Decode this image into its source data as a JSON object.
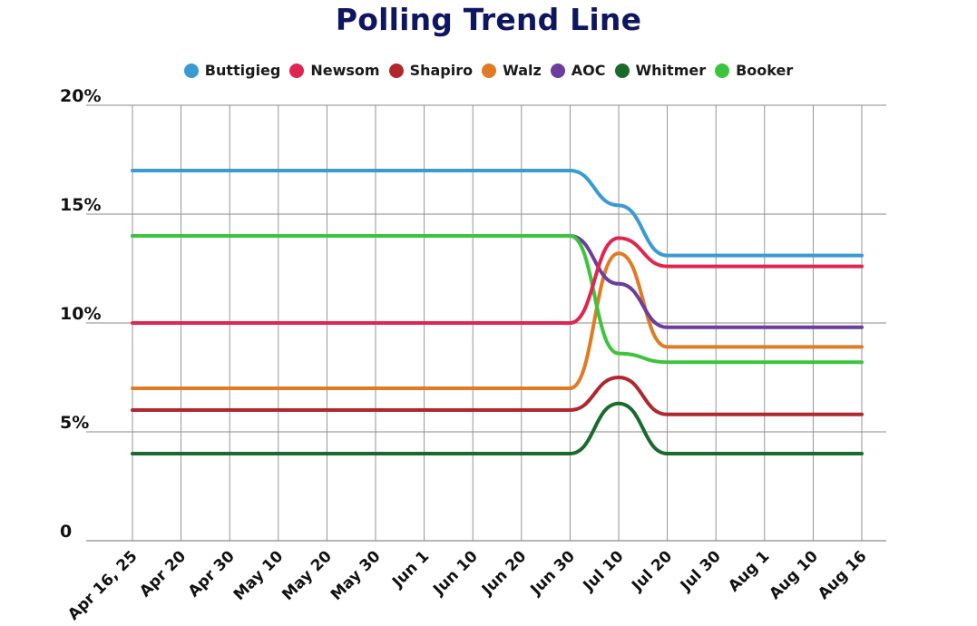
{
  "chart_data": {
    "type": "line",
    "title": "Polling Trend Line",
    "xlabel": "",
    "ylabel": "",
    "x_categories": [
      "Apr 16, 25",
      "Apr 20",
      "Apr 30",
      "May 10",
      "May 20",
      "May 30",
      "Jun 1",
      "Jun 10",
      "Jun 20",
      "Jun 30",
      "Jul 10",
      "Jul 20",
      "Jul 30",
      "Aug 1",
      "Aug 10",
      "Aug 16"
    ],
    "y_ticks": [
      "0",
      "5%",
      "10%",
      "15%",
      "20%"
    ],
    "ylim": [
      0,
      20
    ],
    "y_unit": "%",
    "grid": true,
    "legend_position": "top-center",
    "series": [
      {
        "name": "Buttigieg",
        "color": "#3a9ad2",
        "values": [
          17,
          17,
          17,
          17,
          17,
          17,
          17,
          17,
          17,
          17,
          15.4,
          13.1,
          13.1,
          13.1,
          13.1,
          13.1
        ]
      },
      {
        "name": "Newsom",
        "color": "#e0264f",
        "values": [
          10,
          10,
          10,
          10,
          10,
          10,
          10,
          10,
          10,
          10,
          13.9,
          12.6,
          12.6,
          12.6,
          12.6,
          12.6
        ]
      },
      {
        "name": "Shapiro",
        "color": "#b0282d",
        "values": [
          6,
          6,
          6,
          6,
          6,
          6,
          6,
          6,
          6,
          6,
          7.5,
          5.8,
          5.8,
          5.8,
          5.8,
          5.8
        ]
      },
      {
        "name": "Walz",
        "color": "#e07b24",
        "values": [
          7,
          7,
          7,
          7,
          7,
          7,
          7,
          7,
          7,
          7,
          13.2,
          8.9,
          8.9,
          8.9,
          8.9,
          8.9
        ]
      },
      {
        "name": "AOC",
        "color": "#6a3d9e",
        "values": [
          14,
          14,
          14,
          14,
          14,
          14,
          14,
          14,
          14,
          14,
          11.8,
          9.8,
          9.8,
          9.8,
          9.8,
          9.8
        ]
      },
      {
        "name": "Whitmer",
        "color": "#1a6b2b",
        "values": [
          4,
          4,
          4,
          4,
          4,
          4,
          4,
          4,
          4,
          4,
          6.3,
          4,
          4,
          4,
          4,
          4
        ]
      },
      {
        "name": "Booker",
        "color": "#3cc43c",
        "values": [
          14,
          14,
          14,
          14,
          14,
          14,
          14,
          14,
          14,
          14,
          8.6,
          8.2,
          8.2,
          8.2,
          8.2,
          8.2
        ]
      }
    ]
  }
}
